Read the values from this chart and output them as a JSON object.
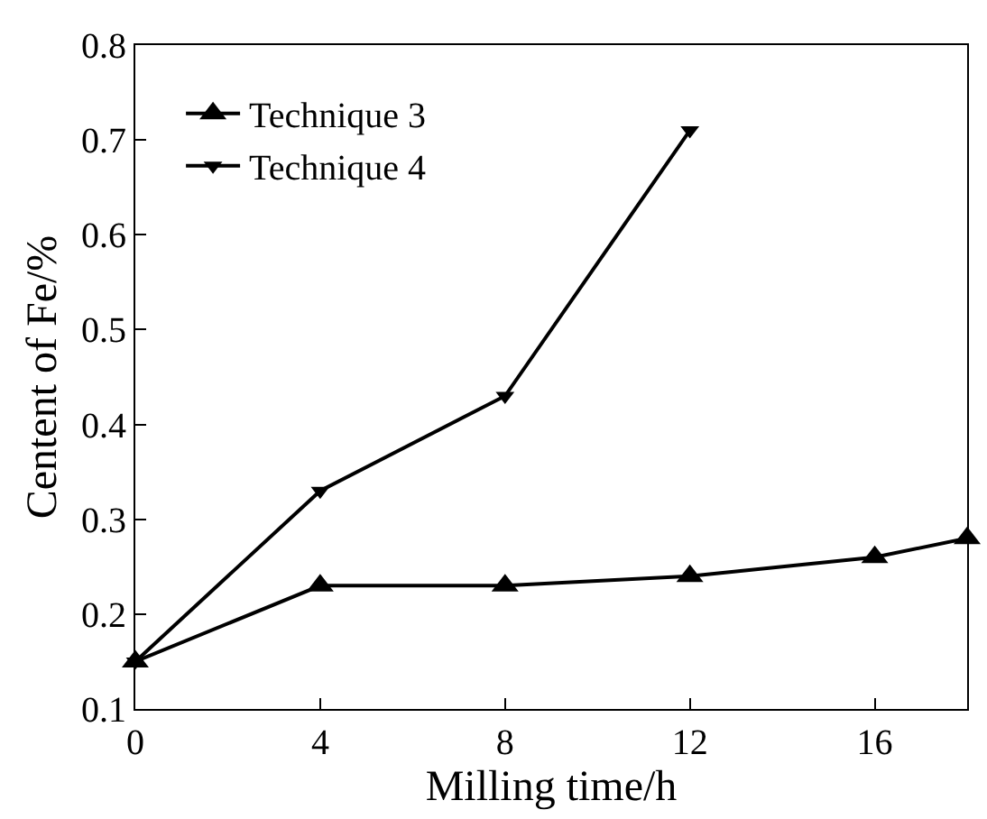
{
  "chart_data": {
    "type": "line",
    "xlabel": "Milling time/h",
    "ylabel": "Centent of Fe/%",
    "x": [
      0,
      4,
      8,
      12,
      16,
      18
    ],
    "series": [
      {
        "name": "Technique 3",
        "color": "#000000",
        "marker": "triangle-up",
        "values": [
          0.15,
          0.23,
          0.23,
          0.24,
          0.26,
          0.28
        ]
      },
      {
        "name": "Technique 4",
        "color": "#000000",
        "marker": "triangle-down",
        "values": [
          0.15,
          0.33,
          0.43,
          0.71,
          null,
          null
        ]
      }
    ],
    "xlim": [
      0,
      18
    ],
    "xticks": [
      0,
      4,
      8,
      12,
      16
    ],
    "ylim": [
      0.1,
      0.8
    ],
    "yticks": [
      0.1,
      0.2,
      0.3,
      0.4,
      0.5,
      0.6,
      0.7,
      0.8
    ],
    "grid": false,
    "legend": "top left",
    "line_style": "solid"
  }
}
